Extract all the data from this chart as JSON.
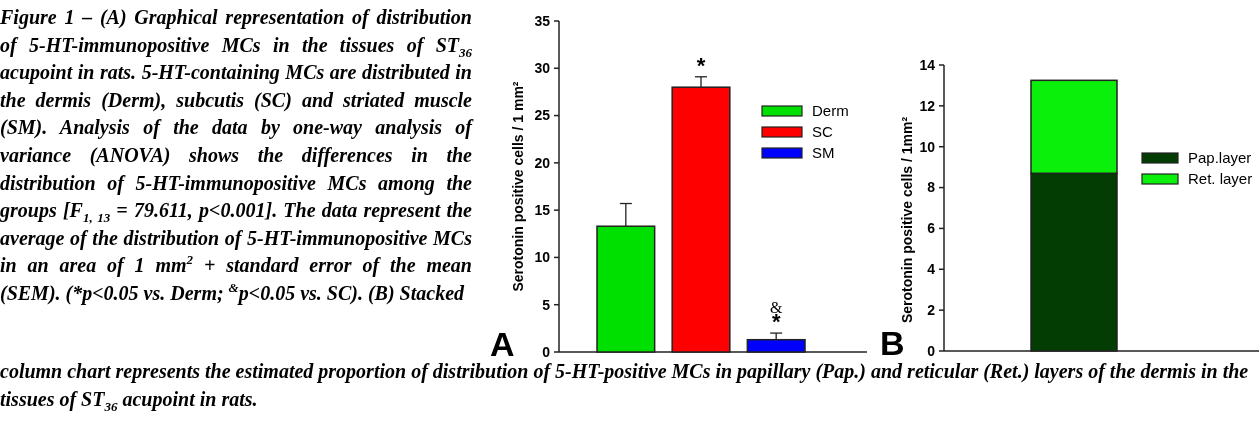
{
  "chart_data": [
    {
      "type": "bar",
      "categories": [
        null,
        null,
        null
      ],
      "ylabel": "Serotonin positive cells / 1 mm²",
      "ylim": [
        0,
        35
      ],
      "yticks": [
        0,
        5,
        10,
        15,
        20,
        25,
        30,
        35
      ],
      "legend": "right",
      "annotations": [
        "A",
        "Figure 1 – (A) Graphical representation of distribution of 5-HT-immunopositive MCs in the tissues of ST$_{36}$ acupoint in rats. 5-HT-containing MCs are distributed in the dermis (Derm), subcutis (SC) and striated muscle (SM). Analysis of the data by one-way analysis of variance (ANOVA) shows the differences in the distribution of 5-HT-immunopositive MCs among the groups [F$_{1, 13}$ = 79.611, p<0.001]. The data represent the average of the distribution of 5-HT-immunopositive MCs in an area of 1 mm$^{2}$ + standard error of the mean (SEM). (*p<0.05 vs. Derm; $^{&}$p<0.05 vs. SC). (B) Stacked",
        "column chart represents the estimated proportion of distribution of 5-HT-positive MCs in papillary (Pap.) and reticular (Ret.) layers of the dermis in the tissues of ST$_{36}$ acupoint in rats."
      ],
      "series": [
        {
          "name": "Derm",
          "color": "#00e000",
          "values": [
            13.3,
            null,
            null
          ],
          "errors": [
            [
              13.3,
              15.7
            ],
            null,
            null
          ]
        },
        {
          "name": "SC",
          "color": "#ff0000",
          "values": [
            null,
            28.0,
            null
          ],
          "errors": [
            null,
            [
              28.0,
              29.1
            ],
            null
          ],
          "value_labels": [
            null,
            "*",
            null
          ]
        },
        {
          "name": "SM",
          "color": "#0000ff",
          "values": [
            null,
            null,
            1.3
          ],
          "errors": [
            null,
            null,
            [
              1.3,
              2.0
            ]
          ],
          "value_labels": [
            null,
            null,
            "&*"
          ]
        }
      ]
    },
    {
      "type": "bar",
      "stacked": true,
      "categories": [
        null
      ],
      "ylabel": "Serotonin positive cells / 1mm²",
      "ylim": [
        0,
        14
      ],
      "yticks": [
        0,
        2,
        4,
        6,
        8,
        10,
        12,
        14
      ],
      "legend": "right",
      "annotations": [
        "B"
      ],
      "series": [
        {
          "name": "Pap.layer",
          "color": "#033d03",
          "values": [
            8.7
          ]
        },
        {
          "name": "Ret. layer",
          "color": "#0bf00b",
          "values": [
            4.55
          ]
        }
      ]
    }
  ]
}
